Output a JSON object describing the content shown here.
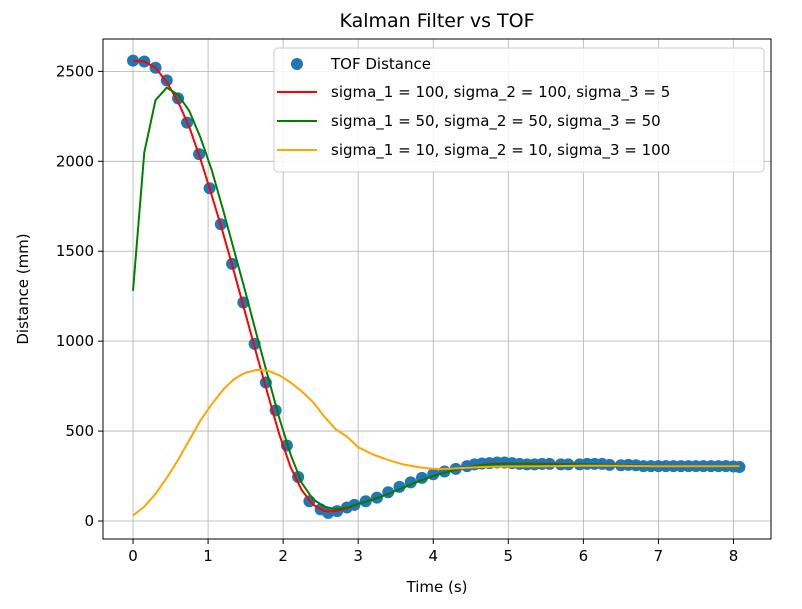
{
  "chart_data": {
    "type": "line",
    "title": "Kalman Filter vs TOF",
    "xlabel": "Time (s)",
    "ylabel": "Distance (mm)",
    "xlim": [
      -0.4,
      8.5
    ],
    "ylim": [
      -100,
      2680
    ],
    "xticks": [
      0,
      1,
      2,
      3,
      4,
      5,
      6,
      7,
      8
    ],
    "yticks": [
      0,
      500,
      1000,
      1500,
      2000,
      2500
    ],
    "grid": true,
    "legend_position": "top-right",
    "scatter": {
      "name": "TOF Distance",
      "color": "#1f77b4",
      "points": [
        [
          0.0,
          2560
        ],
        [
          0.15,
          2555
        ],
        [
          0.3,
          2520
        ],
        [
          0.45,
          2450
        ],
        [
          0.6,
          2350
        ],
        [
          0.72,
          2215
        ],
        [
          0.88,
          2040
        ],
        [
          1.02,
          1850
        ],
        [
          1.17,
          1650
        ],
        [
          1.32,
          1430
        ],
        [
          1.47,
          1215
        ],
        [
          1.62,
          985
        ],
        [
          1.77,
          770
        ],
        [
          1.9,
          615
        ],
        [
          2.05,
          420
        ],
        [
          2.2,
          245
        ],
        [
          2.35,
          110
        ],
        [
          2.5,
          65
        ],
        [
          2.6,
          45
        ],
        [
          2.72,
          55
        ],
        [
          2.85,
          75
        ],
        [
          2.95,
          90
        ],
        [
          3.1,
          110
        ],
        [
          3.25,
          130
        ],
        [
          3.4,
          160
        ],
        [
          3.55,
          190
        ],
        [
          3.7,
          215
        ],
        [
          3.85,
          240
        ],
        [
          4.0,
          260
        ],
        [
          4.15,
          275
        ],
        [
          4.3,
          290
        ],
        [
          4.45,
          305
        ],
        [
          4.55,
          315
        ],
        [
          4.65,
          320
        ],
        [
          4.75,
          322
        ],
        [
          4.85,
          325
        ],
        [
          4.95,
          325
        ],
        [
          5.05,
          322
        ],
        [
          5.15,
          318
        ],
        [
          5.25,
          315
        ],
        [
          5.35,
          315
        ],
        [
          5.45,
          318
        ],
        [
          5.55,
          318
        ],
        [
          5.7,
          315
        ],
        [
          5.8,
          315
        ],
        [
          5.95,
          315
        ],
        [
          6.05,
          318
        ],
        [
          6.15,
          318
        ],
        [
          6.25,
          318
        ],
        [
          6.35,
          312
        ],
        [
          6.5,
          310
        ],
        [
          6.6,
          312
        ],
        [
          6.7,
          310
        ],
        [
          6.8,
          305
        ],
        [
          6.9,
          305
        ],
        [
          7.0,
          305
        ],
        [
          7.1,
          305
        ],
        [
          7.2,
          305
        ],
        [
          7.3,
          305
        ],
        [
          7.4,
          305
        ],
        [
          7.5,
          305
        ],
        [
          7.6,
          305
        ],
        [
          7.7,
          305
        ],
        [
          7.8,
          305
        ],
        [
          7.9,
          305
        ],
        [
          8.0,
          303
        ],
        [
          8.08,
          300
        ]
      ]
    },
    "series": [
      {
        "name": "sigma_1 = 100, sigma_2 = 100, sigma_3 = 5",
        "color": "#ff0000",
        "points": [
          [
            0.0,
            2560
          ],
          [
            0.15,
            2555
          ],
          [
            0.3,
            2520
          ],
          [
            0.45,
            2440
          ],
          [
            0.6,
            2330
          ],
          [
            0.75,
            2190
          ],
          [
            0.9,
            2010
          ],
          [
            1.05,
            1810
          ],
          [
            1.2,
            1600
          ],
          [
            1.35,
            1380
          ],
          [
            1.5,
            1150
          ],
          [
            1.65,
            920
          ],
          [
            1.8,
            700
          ],
          [
            1.95,
            480
          ],
          [
            2.1,
            300
          ],
          [
            2.25,
            170
          ],
          [
            2.4,
            90
          ],
          [
            2.55,
            55
          ],
          [
            2.7,
            55
          ],
          [
            2.85,
            70
          ],
          [
            3.0,
            95
          ],
          [
            3.2,
            120
          ],
          [
            3.4,
            150
          ],
          [
            3.6,
            185
          ],
          [
            3.8,
            220
          ],
          [
            4.0,
            250
          ],
          [
            4.2,
            275
          ],
          [
            4.4,
            295
          ],
          [
            4.6,
            310
          ],
          [
            4.8,
            318
          ],
          [
            5.0,
            320
          ],
          [
            5.5,
            318
          ],
          [
            6.0,
            316
          ],
          [
            6.5,
            312
          ],
          [
            7.0,
            306
          ],
          [
            7.5,
            305
          ],
          [
            8.08,
            302
          ]
        ]
      },
      {
        "name": "sigma_1 = 50, sigma_2 = 50, sigma_3 = 50",
        "color": "#008000",
        "points": [
          [
            0.0,
            1280
          ],
          [
            0.15,
            2050
          ],
          [
            0.3,
            2340
          ],
          [
            0.45,
            2410
          ],
          [
            0.6,
            2370
          ],
          [
            0.75,
            2280
          ],
          [
            0.9,
            2130
          ],
          [
            1.05,
            1950
          ],
          [
            1.2,
            1730
          ],
          [
            1.35,
            1500
          ],
          [
            1.5,
            1270
          ],
          [
            1.65,
            1030
          ],
          [
            1.8,
            800
          ],
          [
            1.95,
            570
          ],
          [
            2.1,
            370
          ],
          [
            2.25,
            210
          ],
          [
            2.4,
            120
          ],
          [
            2.55,
            80
          ],
          [
            2.7,
            65
          ],
          [
            2.85,
            75
          ],
          [
            3.0,
            95
          ],
          [
            3.2,
            120
          ],
          [
            3.4,
            150
          ],
          [
            3.6,
            185
          ],
          [
            3.8,
            220
          ],
          [
            4.0,
            250
          ],
          [
            4.2,
            275
          ],
          [
            4.4,
            295
          ],
          [
            4.6,
            308
          ],
          [
            4.8,
            315
          ],
          [
            5.0,
            318
          ],
          [
            5.5,
            316
          ],
          [
            6.0,
            315
          ],
          [
            6.5,
            311
          ],
          [
            7.0,
            306
          ],
          [
            7.5,
            305
          ],
          [
            8.08,
            302
          ]
        ]
      },
      {
        "name": "sigma_1 = 10, sigma_2 = 10, sigma_3 = 100",
        "color": "#ffa500",
        "points": [
          [
            0.0,
            30
          ],
          [
            0.15,
            80
          ],
          [
            0.3,
            150
          ],
          [
            0.45,
            240
          ],
          [
            0.6,
            340
          ],
          [
            0.75,
            450
          ],
          [
            0.9,
            560
          ],
          [
            1.05,
            650
          ],
          [
            1.2,
            730
          ],
          [
            1.35,
            790
          ],
          [
            1.5,
            825
          ],
          [
            1.65,
            840
          ],
          [
            1.8,
            835
          ],
          [
            1.95,
            810
          ],
          [
            2.1,
            770
          ],
          [
            2.25,
            720
          ],
          [
            2.4,
            660
          ],
          [
            2.55,
            580
          ],
          [
            2.7,
            510
          ],
          [
            2.85,
            470
          ],
          [
            3.0,
            410
          ],
          [
            3.2,
            370
          ],
          [
            3.4,
            340
          ],
          [
            3.6,
            315
          ],
          [
            3.8,
            300
          ],
          [
            4.0,
            290
          ],
          [
            4.2,
            290
          ],
          [
            4.4,
            295
          ],
          [
            4.6,
            300
          ],
          [
            4.8,
            302
          ],
          [
            5.0,
            303
          ],
          [
            5.5,
            305
          ],
          [
            6.0,
            307
          ],
          [
            6.5,
            307
          ],
          [
            7.0,
            305
          ],
          [
            7.5,
            305
          ],
          [
            8.08,
            305
          ]
        ]
      }
    ]
  }
}
